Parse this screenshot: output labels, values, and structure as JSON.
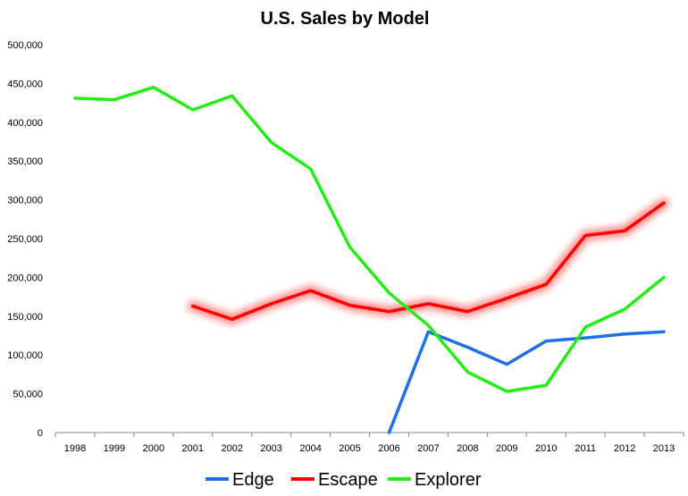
{
  "chart_data": {
    "type": "line",
    "title": "U.S. Sales by Model",
    "xlabel": "",
    "ylabel": "",
    "categories": [
      "1998",
      "1999",
      "2000",
      "2001",
      "2002",
      "2003",
      "2004",
      "2005",
      "2006",
      "2007",
      "2008",
      "2009",
      "2010",
      "2011",
      "2012",
      "2013"
    ],
    "yticks": [
      "0",
      "50,000",
      "100,000",
      "150,000",
      "200,000",
      "250,000",
      "300,000",
      "350,000",
      "400,000",
      "450,000",
      "500,000"
    ],
    "ylim": [
      0,
      500000
    ],
    "grid": false,
    "legend_position": "bottom",
    "series": [
      {
        "name": "Edge",
        "color": "#1f6fe6",
        "glow": false,
        "values": [
          null,
          null,
          null,
          null,
          null,
          null,
          null,
          null,
          0,
          130000,
          110000,
          88000,
          118000,
          122000,
          127000,
          130000
        ]
      },
      {
        "name": "Escape",
        "color": "#ff0000",
        "glow": true,
        "values": [
          null,
          null,
          null,
          163000,
          146000,
          166000,
          183000,
          164000,
          156000,
          166000,
          156000,
          173000,
          191000,
          254000,
          260000,
          296000
        ]
      },
      {
        "name": "Explorer",
        "color": "#22ee11",
        "glow": false,
        "values": [
          431000,
          429000,
          445000,
          416000,
          434000,
          374000,
          340000,
          239000,
          180000,
          138000,
          78000,
          53000,
          61000,
          136000,
          159000,
          200000
        ]
      }
    ]
  }
}
